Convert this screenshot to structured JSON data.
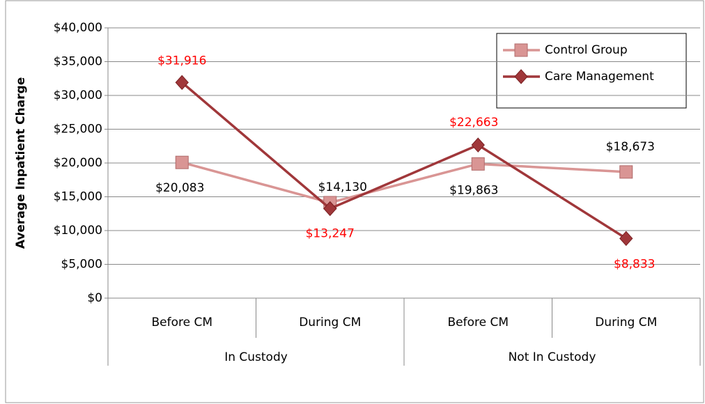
{
  "chart_data": {
    "type": "line",
    "y_label": "Average Inpatient Charge",
    "categories": [
      "Before CM",
      "During CM",
      "Before CM",
      "During CM"
    ],
    "category_groups": [
      "In Custody",
      "Not In Custody"
    ],
    "series": [
      {
        "name": "Control Group",
        "color": "#d99594",
        "marker": "square",
        "label_color": "#000000",
        "values": [
          20083,
          14130,
          19863,
          18673
        ],
        "value_labels": [
          "$20,083",
          "$14,130",
          "$19,863",
          "$18,673"
        ]
      },
      {
        "name": "Care Management",
        "color": "#a0373a",
        "marker": "diamond",
        "label_color": "#ff0000",
        "values": [
          31916,
          13247,
          22663,
          8833
        ],
        "value_labels": [
          "$31,916",
          "$13,247",
          "$22,663",
          "$8,833"
        ]
      }
    ],
    "ylim": [
      0,
      40000
    ],
    "yticks": [
      {
        "value": 0,
        "label": "$0"
      },
      {
        "value": 5000,
        "label": "$5,000"
      },
      {
        "value": 10000,
        "label": "$10,000"
      },
      {
        "value": 15000,
        "label": "$15,000"
      },
      {
        "value": 20000,
        "label": "$20,000"
      },
      {
        "value": 25000,
        "label": "$25,000"
      },
      {
        "value": 30000,
        "label": "$30,000"
      },
      {
        "value": 35000,
        "label": "$35,000"
      },
      {
        "value": 40000,
        "label": "$40,000"
      }
    ],
    "grid": true,
    "legend": "top-right"
  }
}
